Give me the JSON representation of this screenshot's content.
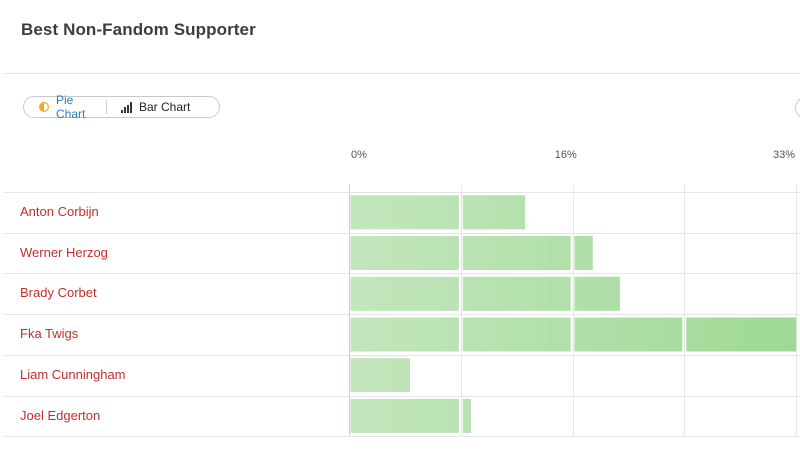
{
  "header": {
    "title": "Best Non-Fandom Supporter"
  },
  "toggle": {
    "pie_label": "Pie Chart",
    "bar_label": "Bar Chart",
    "pie_icon": "pie-chart-icon",
    "bar_icon": "bar-chart-icon",
    "active": "Pie Chart"
  },
  "chart_data": {
    "type": "bar",
    "orientation": "horizontal",
    "categories": [
      "Anton Corbijn",
      "Werner Herzog",
      "Brady Corbet",
      "Fka Twigs",
      "Liam Cunningham",
      "Joel Edgerton"
    ],
    "values": [
      13,
      18,
      20,
      33,
      4.5,
      9
    ],
    "xlim": [
      0,
      33
    ],
    "ticks": [
      0,
      16,
      33
    ],
    "tick_labels": [
      "0%",
      "16%",
      "33%"
    ],
    "segment_size": 8.25,
    "grid": true,
    "colors": {
      "label": "#c0302b",
      "bar_light": "#c3e6bd",
      "bar_dark": "#9ed995"
    }
  }
}
